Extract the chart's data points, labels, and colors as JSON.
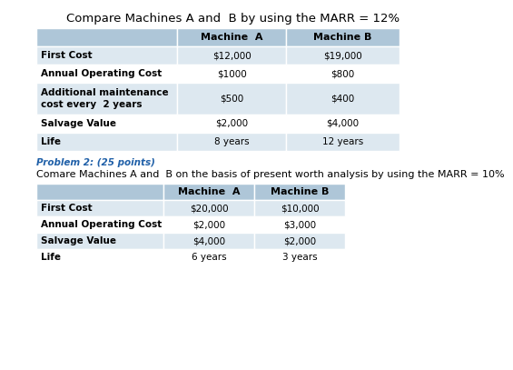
{
  "title1": "Compare Machines A and  B by using the MARR = 12%",
  "table1_header": [
    "",
    "Machine  A",
    "Machine B"
  ],
  "table1_rows": [
    [
      "First Cost",
      "$12,000",
      "$19,000"
    ],
    [
      "Annual Operating Cost",
      "$1000",
      "$800"
    ],
    [
      "Additional maintenance\ncost every  2 years",
      "$500",
      "$400"
    ],
    [
      "Salvage Value",
      "$2,000",
      "$4,000"
    ],
    [
      "Life",
      "8 years",
      "12 years"
    ]
  ],
  "problem2_label": "Problem 2: (25 points)",
  "title2": "Comare Machines A and  B on the basis of present worth analysis by using the MARR = 10%",
  "table2_header": [
    "",
    "Machine  A",
    "Machine B"
  ],
  "table2_rows": [
    [
      "First Cost",
      "$20,000",
      "$10,000"
    ],
    [
      "Annual Operating Cost",
      "$2,000",
      "$3,000"
    ],
    [
      "Salvage Value",
      "$4,000",
      "$2,000"
    ],
    [
      "Life",
      "6 years",
      "3 years"
    ]
  ],
  "header_bg": "#aec6d8",
  "row_bg_even": "#dde8f0",
  "row_bg_odd": "#ffffff",
  "border_color": "#ffffff",
  "problem2_color": "#2060a8",
  "title1_fontsize": 9.5,
  "header_fontsize": 8.0,
  "cell_fontsize": 7.5,
  "problem2_fontsize": 7.5,
  "title2_fontsize": 8.0,
  "bg_color": "#ffffff"
}
